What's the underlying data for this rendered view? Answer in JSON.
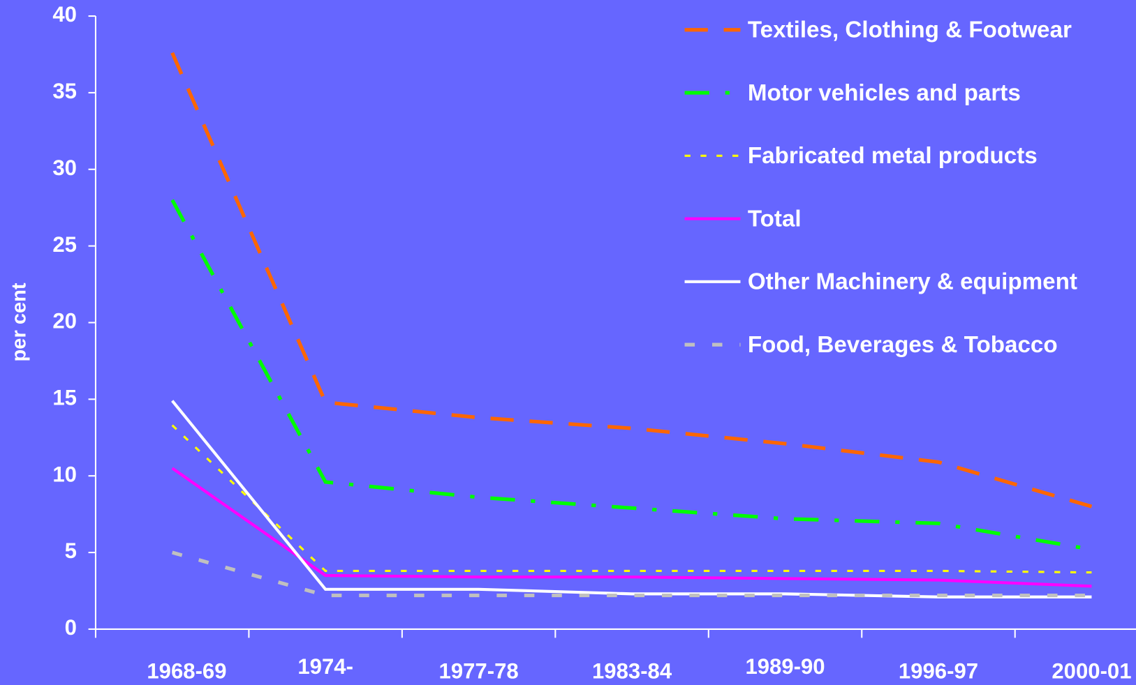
{
  "chart_data": {
    "type": "line",
    "y_label": "per cent",
    "categories": [
      "1968-69",
      "1974-",
      "1977-78",
      "1983-84",
      "1989-90",
      "1996-97",
      "2000-01"
    ],
    "series": [
      {
        "name": "Textiles, Clothing & Footwear",
        "color": "#ff6600",
        "dash": "dash",
        "values": [
          37.6,
          14.8,
          13.8,
          13.1,
          12.1,
          10.9,
          8.0
        ]
      },
      {
        "name": "Motor vehicles and parts",
        "color": "#00ff00",
        "dash": "dashdot",
        "values": [
          28.0,
          9.6,
          8.6,
          7.9,
          7.2,
          6.9,
          5.2
        ]
      },
      {
        "name": "Fabricated metal products",
        "color": "#ffff00",
        "dash": "dot",
        "values": [
          13.3,
          3.8,
          3.8,
          3.8,
          3.8,
          3.8,
          3.7
        ]
      },
      {
        "name": "Total",
        "color": "#ff00ff",
        "dash": "solid",
        "values": [
          10.5,
          3.5,
          3.4,
          3.4,
          3.3,
          3.2,
          2.8
        ]
      },
      {
        "name": "Other Machinery & equipment",
        "color": "#ffffff",
        "dash": "solid",
        "values": [
          14.9,
          2.6,
          2.6,
          2.3,
          2.3,
          2.1,
          2.1
        ]
      },
      {
        "name": "Food, Beverages & Tobacco",
        "color": "#c0c0c0",
        "dash": "shortdash",
        "values": [
          5.0,
          2.2,
          2.2,
          2.2,
          2.2,
          2.2,
          2.2
        ]
      }
    ],
    "ylim": [
      0,
      40
    ],
    "yticks": [
      0,
      5,
      10,
      15,
      20,
      25,
      30,
      35,
      40
    ],
    "grid": false,
    "legend": "upper right"
  }
}
